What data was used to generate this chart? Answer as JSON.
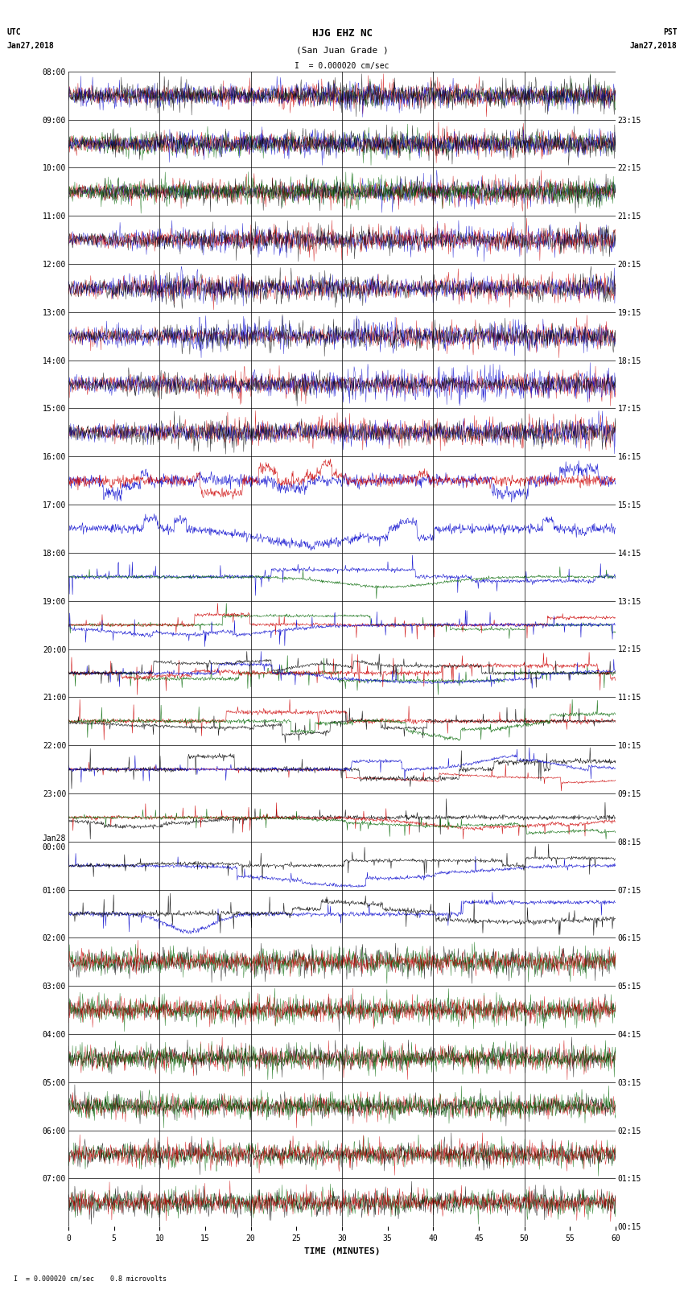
{
  "title_line1": "HJG EHZ NC",
  "title_line2": "(San Juan Grade )",
  "scale_text": "I  = 0.000020 cm/sec",
  "bottom_scale_text": "I  = 0.000020 cm/sec    0.8 microvolts",
  "utc_label": "UTC",
  "utc_date": "Jan27,2018",
  "pst_label": "PST",
  "pst_date": "Jan27,2018",
  "xlabel": "TIME (MINUTES)",
  "left_times": [
    "08:00",
    "09:00",
    "10:00",
    "11:00",
    "12:00",
    "13:00",
    "14:00",
    "15:00",
    "16:00",
    "17:00",
    "18:00",
    "19:00",
    "20:00",
    "21:00",
    "22:00",
    "23:00",
    "Jan28\n00:00",
    "01:00",
    "02:00",
    "03:00",
    "04:00",
    "05:00",
    "06:00",
    "07:00"
  ],
  "right_times": [
    "00:15",
    "01:15",
    "02:15",
    "03:15",
    "04:15",
    "05:15",
    "06:15",
    "07:15",
    "08:15",
    "09:15",
    "10:15",
    "11:15",
    "12:15",
    "13:15",
    "14:15",
    "15:15",
    "16:15",
    "17:15",
    "18:15",
    "19:15",
    "20:15",
    "21:15",
    "22:15",
    "23:15"
  ],
  "n_rows": 24,
  "minutes_per_row": 60,
  "background_color": "#ffffff",
  "grid_color": "#000000",
  "colors": {
    "black": "#000000",
    "red": "#cc0000",
    "blue": "#0000cc",
    "green": "#006600"
  },
  "fig_width": 8.5,
  "fig_height": 16.13,
  "title_fontsize": 9,
  "label_fontsize": 7,
  "tick_fontsize": 7
}
